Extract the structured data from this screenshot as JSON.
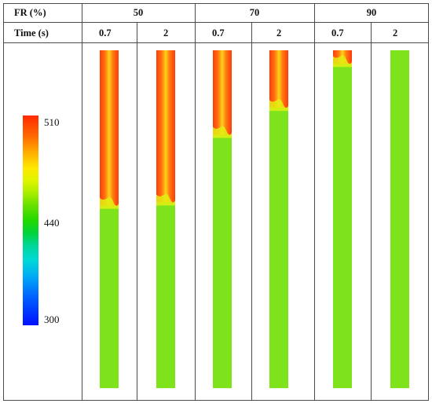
{
  "table": {
    "header_row1": {
      "label": "FR (%)",
      "groups": [
        "50",
        "70",
        "90"
      ]
    },
    "header_row2": {
      "label": "Time (s)",
      "times": [
        "0.7",
        "2",
        "0.7",
        "2",
        "0.7",
        "2"
      ]
    }
  },
  "legend": {
    "max_label": "510",
    "mid_label": "440",
    "min_label": "300",
    "colors": [
      "#ff2a00",
      "#ffe800",
      "#7fe31c",
      "#00d9d8",
      "#0010ff"
    ]
  },
  "figure": {
    "liquid_color": "#7fe31c",
    "vapor_color": "#ff3a0c",
    "panels": [
      {
        "fr": "50",
        "time": "0.7",
        "interface_fraction": 0.46
      },
      {
        "fr": "50",
        "time": "2",
        "interface_fraction": 0.45
      },
      {
        "fr": "70",
        "time": "0.7",
        "interface_fraction": 0.25
      },
      {
        "fr": "70",
        "time": "2",
        "interface_fraction": 0.17
      },
      {
        "fr": "90",
        "time": "0.7",
        "interface_fraction": 0.04
      },
      {
        "fr": "90",
        "time": "2",
        "interface_fraction": 0.0
      }
    ]
  }
}
